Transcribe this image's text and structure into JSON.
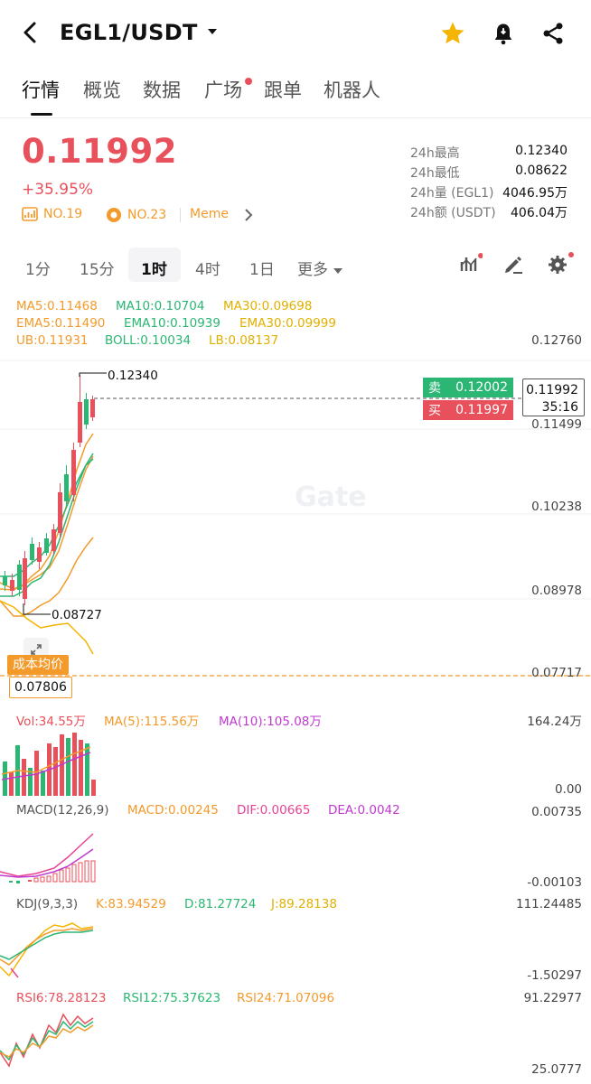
{
  "header": {
    "pair": "EGL1/USDT"
  },
  "tabs": [
    {
      "label": "行情"
    },
    {
      "label": "概览"
    },
    {
      "label": "数据"
    },
    {
      "label": "广场"
    },
    {
      "label": "跟单"
    },
    {
      "label": "机器人"
    }
  ],
  "price": {
    "last": "0.11992",
    "change": "+35.95%"
  },
  "badges": {
    "rank1": "NO.19",
    "rank2": "NO.23",
    "tag": "Meme"
  },
  "stats": [
    {
      "label": "24h最高",
      "value": "0.12340"
    },
    {
      "label": "24h最低",
      "value": "0.08622"
    },
    {
      "label": "24h量 (EGL1)",
      "value": "4046.95万"
    },
    {
      "label": "24h额 (USDT)",
      "value": "406.04万"
    }
  ],
  "timeframes": [
    "1分",
    "15分",
    "1时",
    "4时",
    "1日",
    "更多"
  ],
  "indicators": {
    "ma5": "MA5:0.11468",
    "ma10": "MA10:0.10704",
    "ma30": "MA30:0.09698",
    "ema5": "EMA5:0.11490",
    "ema10": "EMA10:0.10939",
    "ema30": "EMA30:0.09999",
    "ub": "UB:0.11931",
    "boll": "BOLL:0.10034",
    "lb": "LB:0.08137"
  },
  "main_axis": [
    "0.12760",
    "0.11499",
    "0.10238",
    "0.08978",
    "0.07717"
  ],
  "chart_labels": {
    "high": "0.12340",
    "low": "0.08727",
    "current": "0.11992",
    "countdown": "35:16",
    "cost_label": "成本均价",
    "cost_value": "0.07806",
    "watermark": "Gate"
  },
  "orderbook": {
    "sell_label": "卖",
    "sell_price": "0.12002",
    "buy_label": "买",
    "buy_price": "0.11997"
  },
  "vol": {
    "vol": "Vol:34.55万",
    "ma5": "MA(5):115.56万",
    "ma10": "MA(10):105.08万",
    "axis_top": "164.24万",
    "axis_bottom": "0.00"
  },
  "macd": {
    "title": "MACD(12,26,9)",
    "macd": "MACD:0.00245",
    "dif": "DIF:0.00665",
    "dea": "DEA:0.0042",
    "axis_top": "0.00735",
    "axis_bottom": "-0.00103"
  },
  "kdj": {
    "title": "KDJ(9,3,3)",
    "k": "K:83.94529",
    "d": "D:81.27724",
    "j": "J:89.28138",
    "axis_top": "111.24485",
    "axis_bottom": "-1.50297"
  },
  "rsi": {
    "rsi6": "RSI6:78.28123",
    "rsi12": "RSI12:75.37623",
    "rsi24": "RSI24:71.07096",
    "axis_top": "91.22977",
    "axis_bottom": "25.0777"
  },
  "colors": {
    "up": "#e8505b",
    "down": "#2bb673",
    "accent": "#f39a2b",
    "gold": "#f5b400"
  }
}
